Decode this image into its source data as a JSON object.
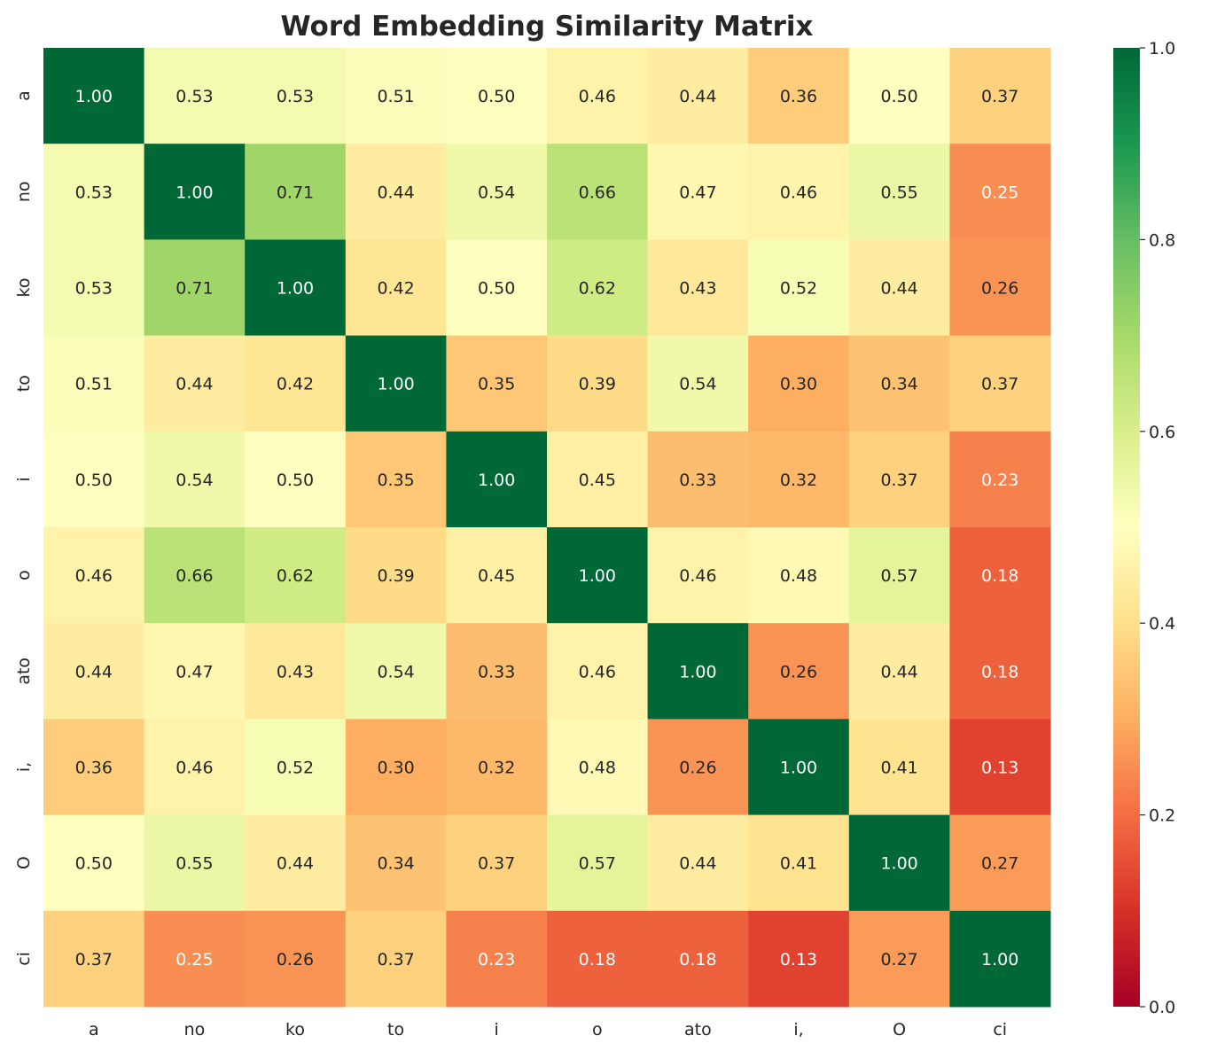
{
  "chart_data": {
    "type": "heatmap",
    "title": "Word Embedding Similarity Matrix",
    "xlabel": "",
    "ylabel": "",
    "colormap": "RdYlGn",
    "colorbar": {
      "range": [
        0.0,
        1.0
      ],
      "ticks": [
        "0.0",
        "0.2",
        "0.4",
        "0.6",
        "0.8",
        "1.0"
      ]
    },
    "categories": [
      "a",
      "no",
      "ko",
      "to",
      "i",
      "o",
      "ato",
      "i,",
      "O",
      "ci"
    ],
    "values": [
      [
        1.0,
        0.53,
        0.53,
        0.51,
        0.5,
        0.46,
        0.44,
        0.36,
        0.5,
        0.37
      ],
      [
        0.53,
        1.0,
        0.71,
        0.44,
        0.54,
        0.66,
        0.47,
        0.46,
        0.55,
        0.25
      ],
      [
        0.53,
        0.71,
        1.0,
        0.42,
        0.5,
        0.62,
        0.43,
        0.52,
        0.44,
        0.26
      ],
      [
        0.51,
        0.44,
        0.42,
        1.0,
        0.35,
        0.39,
        0.54,
        0.3,
        0.34,
        0.37
      ],
      [
        0.5,
        0.54,
        0.5,
        0.35,
        1.0,
        0.45,
        0.33,
        0.32,
        0.37,
        0.23
      ],
      [
        0.46,
        0.66,
        0.62,
        0.39,
        0.45,
        1.0,
        0.46,
        0.48,
        0.57,
        0.18
      ],
      [
        0.44,
        0.47,
        0.43,
        0.54,
        0.33,
        0.46,
        1.0,
        0.26,
        0.44,
        0.18
      ],
      [
        0.36,
        0.46,
        0.52,
        0.3,
        0.32,
        0.48,
        0.26,
        1.0,
        0.41,
        0.13
      ],
      [
        0.5,
        0.55,
        0.44,
        0.34,
        0.37,
        0.57,
        0.44,
        0.41,
        1.0,
        0.27
      ],
      [
        0.37,
        0.25,
        0.26,
        0.37,
        0.23,
        0.18,
        0.18,
        0.13,
        0.27,
        1.0
      ]
    ]
  }
}
